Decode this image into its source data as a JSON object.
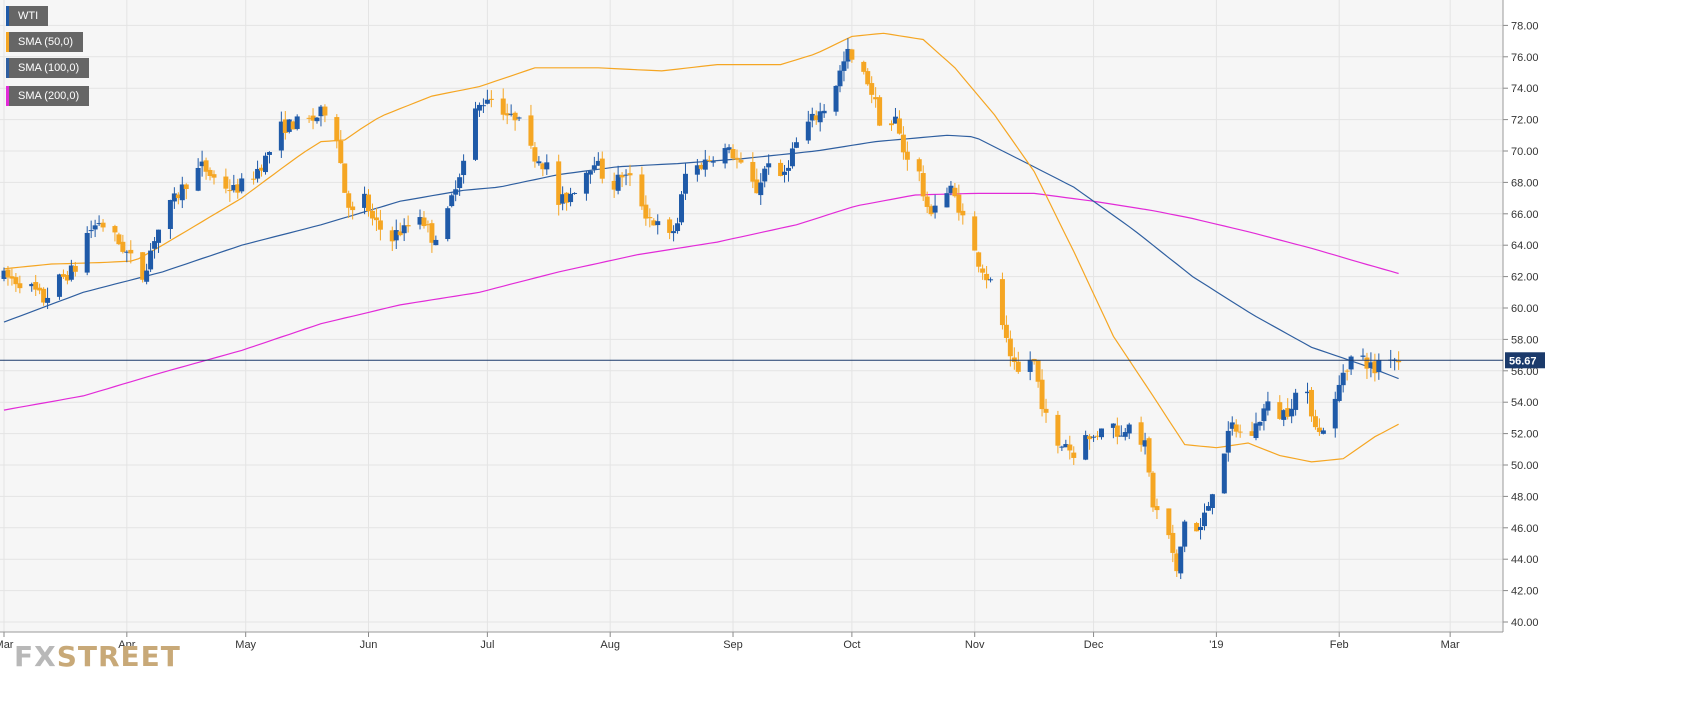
{
  "colors": {
    "up": "#1f5aa8",
    "down": "#f5a623",
    "sma50": "#f5a623",
    "sma100": "#2f5fa0",
    "sma200": "#e22bd8",
    "last_price_line": "#1b3a6b",
    "plot_bg": "#f6f6f6",
    "grid": "#e4e4e4",
    "label_bg": "#1b3a6b"
  },
  "legend": [
    {
      "label": "WTI",
      "color": "#1f5aa8"
    },
    {
      "label": "SMA (50,0)",
      "color": "#f5a623"
    },
    {
      "label": "SMA (100,0)",
      "color": "#2f5fa0"
    },
    {
      "label": "SMA (200,0)",
      "color": "#e22bd8"
    }
  ],
  "watermark": {
    "part1": "FX",
    "part2": "STREET"
  },
  "last_price": {
    "value": 56.67,
    "label": "56.67"
  },
  "chart_data": {
    "type": "candlestick",
    "ylim": [
      40,
      78
    ],
    "yticks": [
      "40.00",
      "42.00",
      "44.00",
      "46.00",
      "48.00",
      "50.00",
      "52.00",
      "54.00",
      "56.00",
      "58.00",
      "60.00",
      "62.00",
      "64.00",
      "66.00",
      "68.00",
      "70.00",
      "72.00",
      "74.00",
      "76.00",
      "78.00"
    ],
    "x_range_days": [
      0,
      369
    ],
    "xticks": [
      {
        "label": "Mar",
        "day": 0
      },
      {
        "label": "Apr",
        "day": 31
      },
      {
        "label": "May",
        "day": 61
      },
      {
        "label": "Jun",
        "day": 92
      },
      {
        "label": "Jul",
        "day": 122
      },
      {
        "label": "Aug",
        "day": 153
      },
      {
        "label": "Sep",
        "day": 184
      },
      {
        "label": "Oct",
        "day": 214
      },
      {
        "label": "Nov",
        "day": 245
      },
      {
        "label": "Dec",
        "day": 275
      },
      {
        "label": "'19",
        "day": 306
      },
      {
        "label": "Feb",
        "day": 337
      },
      {
        "label": "Mar",
        "day": 365
      }
    ],
    "price_anchors": [
      [
        0,
        62
      ],
      [
        6,
        61.5
      ],
      [
        10,
        60.5
      ],
      [
        14,
        61.8
      ],
      [
        18,
        62.5
      ],
      [
        20,
        64.5
      ],
      [
        24,
        65.5
      ],
      [
        27,
        64.8
      ],
      [
        31,
        63.5
      ],
      [
        35,
        62
      ],
      [
        38,
        64.5
      ],
      [
        42,
        66.5
      ],
      [
        46,
        68
      ],
      [
        50,
        69
      ],
      [
        54,
        68
      ],
      [
        58,
        67.5
      ],
      [
        62,
        68.2
      ],
      [
        66,
        69.5
      ],
      [
        70,
        71.5
      ],
      [
        74,
        71.8
      ],
      [
        78,
        72
      ],
      [
        81,
        72.6
      ],
      [
        84,
        71
      ],
      [
        86,
        67.5
      ],
      [
        88,
        66
      ],
      [
        91,
        67
      ],
      [
        93,
        65.5
      ],
      [
        97,
        64.5
      ],
      [
        101,
        65
      ],
      [
        105,
        66
      ],
      [
        108,
        64.5
      ],
      [
        111,
        65
      ],
      [
        114,
        68
      ],
      [
        117,
        70
      ],
      [
        119,
        72.5
      ],
      [
        122,
        73.5
      ],
      [
        125,
        73
      ],
      [
        128,
        72
      ],
      [
        131,
        72.8
      ],
      [
        133,
        70
      ],
      [
        137,
        69
      ],
      [
        139,
        66.5
      ],
      [
        142,
        67
      ],
      [
        145,
        68
      ],
      [
        149,
        69.5
      ],
      [
        153,
        67.5
      ],
      [
        156,
        68.5
      ],
      [
        159,
        68
      ],
      [
        162,
        66
      ],
      [
        166,
        65
      ],
      [
        168,
        64.5
      ],
      [
        170,
        65.5
      ],
      [
        172,
        68.5
      ],
      [
        175,
        69
      ],
      [
        178,
        69.5
      ],
      [
        181,
        70.2
      ],
      [
        184,
        69.8
      ],
      [
        187,
        68.5
      ],
      [
        190,
        67.5
      ],
      [
        193,
        69.5
      ],
      [
        196,
        68
      ],
      [
        199,
        70
      ],
      [
        202,
        71.5
      ],
      [
        205,
        72.2
      ],
      [
        208,
        73
      ],
      [
        211,
        75
      ],
      [
        213,
        76.2
      ],
      [
        215,
        75.2
      ],
      [
        218,
        74.5
      ],
      [
        220,
        73
      ],
      [
        222,
        71
      ],
      [
        225,
        72
      ],
      [
        227,
        70
      ],
      [
        229,
        69.5
      ],
      [
        231,
        68.5
      ],
      [
        233,
        66
      ],
      [
        236,
        67
      ],
      [
        239,
        67.5
      ],
      [
        241,
        66.5
      ],
      [
        243,
        65
      ],
      [
        245,
        63.5
      ],
      [
        248,
        62
      ],
      [
        250,
        61
      ],
      [
        252,
        59
      ],
      [
        254,
        56.5
      ],
      [
        256,
        55.8
      ],
      [
        258,
        57
      ],
      [
        260,
        56.5
      ],
      [
        262,
        54
      ],
      [
        264,
        52
      ],
      [
        266,
        51
      ],
      [
        268,
        51.5
      ],
      [
        270,
        50.5
      ],
      [
        272,
        53
      ],
      [
        274,
        51.5
      ],
      [
        276,
        52
      ],
      [
        278,
        53.2
      ],
      [
        280,
        52.5
      ],
      [
        282,
        51.8
      ],
      [
        284,
        53
      ],
      [
        286,
        52
      ],
      [
        288,
        51.2
      ],
      [
        290,
        47.5
      ],
      [
        292,
        46.5
      ],
      [
        294,
        45.5
      ],
      [
        296,
        43
      ],
      [
        298,
        46.5
      ],
      [
        300,
        45.5
      ],
      [
        302,
        46
      ],
      [
        304,
        47.5
      ],
      [
        306,
        49.5
      ],
      [
        308,
        51
      ],
      [
        310,
        52.5
      ],
      [
        312,
        52
      ],
      [
        314,
        51.5
      ],
      [
        316,
        52.5
      ],
      [
        318,
        53.5
      ],
      [
        320,
        54
      ],
      [
        322,
        53.2
      ],
      [
        324,
        53.5
      ],
      [
        326,
        54.5
      ],
      [
        328,
        55
      ],
      [
        330,
        53.5
      ],
      [
        332,
        52
      ],
      [
        334,
        53
      ],
      [
        336,
        54
      ],
      [
        338,
        56
      ],
      [
        340,
        56.8
      ],
      [
        342,
        57
      ],
      [
        344,
        56.5
      ],
      [
        346,
        56
      ],
      [
        348,
        57.3
      ],
      [
        350,
        57
      ],
      [
        352,
        56.67
      ]
    ],
    "sma50_anchors": [
      [
        0,
        62.5
      ],
      [
        12,
        62.8
      ],
      [
        25,
        62.9
      ],
      [
        33,
        63
      ],
      [
        40,
        64
      ],
      [
        50,
        65.5
      ],
      [
        60,
        67
      ],
      [
        68,
        68.5
      ],
      [
        75,
        69.8
      ],
      [
        80,
        70.6
      ],
      [
        86,
        70.7
      ],
      [
        90,
        71.4
      ],
      [
        95,
        72.2
      ],
      [
        108,
        73.5
      ],
      [
        120,
        74.1
      ],
      [
        134,
        75.3
      ],
      [
        150,
        75.3
      ],
      [
        166,
        75.1
      ],
      [
        180,
        75.5
      ],
      [
        196,
        75.5
      ],
      [
        205,
        76.2
      ],
      [
        214,
        77.3
      ],
      [
        222,
        77.5
      ],
      [
        232,
        77.1
      ],
      [
        240,
        75.3
      ],
      [
        250,
        72.3
      ],
      [
        260,
        68.7
      ],
      [
        270,
        63.6
      ],
      [
        280,
        58.2
      ],
      [
        290,
        54.4
      ],
      [
        298,
        51.3
      ],
      [
        306,
        51.1
      ],
      [
        314,
        51.4
      ],
      [
        322,
        50.6
      ],
      [
        330,
        50.2
      ],
      [
        338,
        50.4
      ],
      [
        346,
        51.8
      ],
      [
        352,
        52.6
      ]
    ],
    "sma100_anchors": [
      [
        0,
        59.1
      ],
      [
        20,
        61
      ],
      [
        40,
        62.3
      ],
      [
        60,
        64
      ],
      [
        80,
        65.3
      ],
      [
        100,
        66.8
      ],
      [
        116,
        67.5
      ],
      [
        125,
        67.7
      ],
      [
        140,
        68.5
      ],
      [
        155,
        69
      ],
      [
        170,
        69.2
      ],
      [
        186,
        69.5
      ],
      [
        205,
        70
      ],
      [
        220,
        70.6
      ],
      [
        238,
        71
      ],
      [
        245,
        70.9
      ],
      [
        256,
        69.5
      ],
      [
        270,
        67.7
      ],
      [
        285,
        65
      ],
      [
        300,
        62
      ],
      [
        315,
        59.6
      ],
      [
        330,
        57.5
      ],
      [
        345,
        56.2
      ],
      [
        352,
        55.5
      ]
    ],
    "sma200_anchors": [
      [
        0,
        53.5
      ],
      [
        20,
        54.4
      ],
      [
        40,
        55.9
      ],
      [
        60,
        57.3
      ],
      [
        80,
        59
      ],
      [
        100,
        60.2
      ],
      [
        120,
        61
      ],
      [
        140,
        62.3
      ],
      [
        160,
        63.4
      ],
      [
        180,
        64.2
      ],
      [
        200,
        65.3
      ],
      [
        215,
        66.5
      ],
      [
        230,
        67.2
      ],
      [
        245,
        67.3
      ],
      [
        260,
        67.3
      ],
      [
        275,
        66.8
      ],
      [
        290,
        66.2
      ],
      [
        300,
        65.7
      ],
      [
        315,
        64.8
      ],
      [
        330,
        63.8
      ],
      [
        345,
        62.7
      ],
      [
        352,
        62.2
      ]
    ]
  }
}
